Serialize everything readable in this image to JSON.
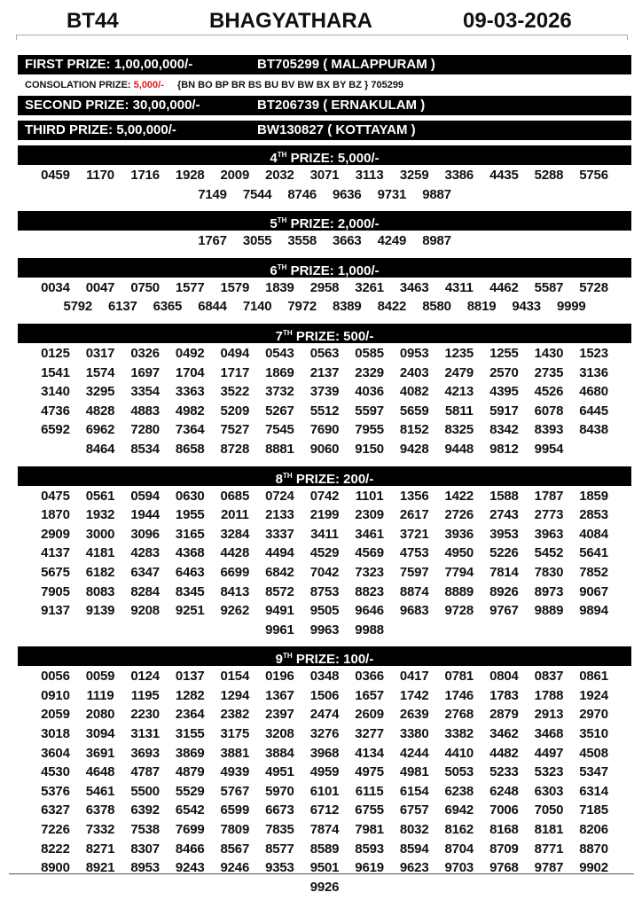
{
  "header": {
    "code": "BT44",
    "name": "BHAGYATHARA",
    "date": "09-03-2026"
  },
  "first": {
    "label": "FIRST PRIZE: 1,00,00,000/-",
    "winner": "BT705299 ( MALAPPURAM )"
  },
  "consolation": {
    "label": "CONSOLATION PRIZE: ",
    "amount": "5,000/-",
    "series": "{BN BO BP BR BS BU BV BW BX BY BZ } 705299",
    "amount_color": "#e01b1b"
  },
  "second": {
    "label": "SECOND PRIZE: 30,00,000/-",
    "winner": "BT206739 ( ERNAKULAM )"
  },
  "third": {
    "label": "THIRD PRIZE: 5,00,000/-",
    "winner": "BW130827 ( KOTTAYAM )"
  },
  "prizes": [
    {
      "ord": "4",
      "sup": "TH",
      "label": " PRIZE: 5,000/-",
      "numbers": [
        "0459",
        "1170",
        "1716",
        "1928",
        "2009",
        "2032",
        "3071",
        "3113",
        "3259",
        "3386",
        "4435",
        "5288",
        "5756",
        "7149",
        "7544",
        "8746",
        "9636",
        "9731",
        "9887"
      ]
    },
    {
      "ord": "5",
      "sup": "TH",
      "label": " PRIZE: 2,000/-",
      "numbers": [
        "1767",
        "3055",
        "3558",
        "3663",
        "4249",
        "8987"
      ]
    },
    {
      "ord": "6",
      "sup": "TH",
      "label": " PRIZE: 1,000/-",
      "numbers": [
        "0034",
        "0047",
        "0750",
        "1577",
        "1579",
        "1839",
        "2958",
        "3261",
        "3463",
        "4311",
        "4462",
        "5587",
        "5728",
        "5792",
        "6137",
        "6365",
        "6844",
        "7140",
        "7972",
        "8389",
        "8422",
        "8580",
        "8819",
        "9433",
        "9999"
      ]
    },
    {
      "ord": "7",
      "sup": "TH",
      "label": " PRIZE: 500/-",
      "numbers": [
        "0125",
        "0317",
        "0326",
        "0492",
        "0494",
        "0543",
        "0563",
        "0585",
        "0953",
        "1235",
        "1255",
        "1430",
        "1523",
        "1541",
        "1574",
        "1697",
        "1704",
        "1717",
        "1869",
        "2137",
        "2329",
        "2403",
        "2479",
        "2570",
        "2735",
        "3136",
        "3140",
        "3295",
        "3354",
        "3363",
        "3522",
        "3732",
        "3739",
        "4036",
        "4082",
        "4213",
        "4395",
        "4526",
        "4680",
        "4736",
        "4828",
        "4883",
        "4982",
        "5209",
        "5267",
        "5512",
        "5597",
        "5659",
        "5811",
        "5917",
        "6078",
        "6445",
        "6592",
        "6962",
        "7280",
        "7364",
        "7527",
        "7545",
        "7690",
        "7955",
        "8152",
        "8325",
        "8342",
        "8393",
        "8438",
        "8464",
        "8534",
        "8658",
        "8728",
        "8881",
        "9060",
        "9150",
        "9428",
        "9448",
        "9812",
        "9954"
      ]
    },
    {
      "ord": "8",
      "sup": "TH",
      "label": " PRIZE: 200/-",
      "numbers": [
        "0475",
        "0561",
        "0594",
        "0630",
        "0685",
        "0724",
        "0742",
        "1101",
        "1356",
        "1422",
        "1588",
        "1787",
        "1859",
        "1870",
        "1932",
        "1944",
        "1955",
        "2011",
        "2133",
        "2199",
        "2309",
        "2617",
        "2726",
        "2743",
        "2773",
        "2853",
        "2909",
        "3000",
        "3096",
        "3165",
        "3284",
        "3337",
        "3411",
        "3461",
        "3721",
        "3936",
        "3953",
        "3963",
        "4084",
        "4137",
        "4181",
        "4283",
        "4368",
        "4428",
        "4494",
        "4529",
        "4569",
        "4753",
        "4950",
        "5226",
        "5452",
        "5641",
        "5675",
        "6182",
        "6347",
        "6463",
        "6699",
        "6842",
        "7042",
        "7323",
        "7597",
        "7794",
        "7814",
        "7830",
        "7852",
        "7905",
        "8083",
        "8284",
        "8345",
        "8413",
        "8572",
        "8753",
        "8823",
        "8874",
        "8889",
        "8926",
        "8973",
        "9067",
        "9137",
        "9139",
        "9208",
        "9251",
        "9262",
        "9491",
        "9505",
        "9646",
        "9683",
        "9728",
        "9767",
        "9889",
        "9894",
        "9961",
        "9963",
        "9988"
      ]
    },
    {
      "ord": "9",
      "sup": "TH",
      "label": " PRIZE: 100/-",
      "numbers": [
        "0056",
        "0059",
        "0124",
        "0137",
        "0154",
        "0196",
        "0348",
        "0366",
        "0417",
        "0781",
        "0804",
        "0837",
        "0861",
        "0910",
        "1119",
        "1195",
        "1282",
        "1294",
        "1367",
        "1506",
        "1657",
        "1742",
        "1746",
        "1783",
        "1788",
        "1924",
        "2059",
        "2080",
        "2230",
        "2364",
        "2382",
        "2397",
        "2474",
        "2609",
        "2639",
        "2768",
        "2879",
        "2913",
        "2970",
        "3018",
        "3094",
        "3131",
        "3155",
        "3175",
        "3208",
        "3276",
        "3277",
        "3380",
        "3382",
        "3462",
        "3468",
        "3510",
        "3604",
        "3691",
        "3693",
        "3869",
        "3881",
        "3884",
        "3968",
        "4134",
        "4244",
        "4410",
        "4482",
        "4497",
        "4508",
        "4530",
        "4648",
        "4787",
        "4879",
        "4939",
        "4951",
        "4959",
        "4975",
        "4981",
        "5053",
        "5233",
        "5323",
        "5347",
        "5376",
        "5461",
        "5500",
        "5529",
        "5767",
        "5970",
        "6101",
        "6115",
        "6154",
        "6238",
        "6248",
        "6303",
        "6314",
        "6327",
        "6378",
        "6392",
        "6542",
        "6599",
        "6673",
        "6712",
        "6755",
        "6757",
        "6942",
        "7006",
        "7050",
        "7185",
        "7226",
        "7332",
        "7538",
        "7699",
        "7809",
        "7835",
        "7874",
        "7981",
        "8032",
        "8162",
        "8168",
        "8181",
        "8206",
        "8222",
        "8271",
        "8307",
        "8466",
        "8567",
        "8577",
        "8589",
        "8593",
        "8594",
        "8704",
        "8709",
        "8771",
        "8870",
        "8900",
        "8921",
        "8953",
        "9243",
        "9246",
        "9353",
        "9501",
        "9619",
        "9623",
        "9703",
        "9768",
        "9787",
        "9902",
        "9926"
      ]
    }
  ]
}
